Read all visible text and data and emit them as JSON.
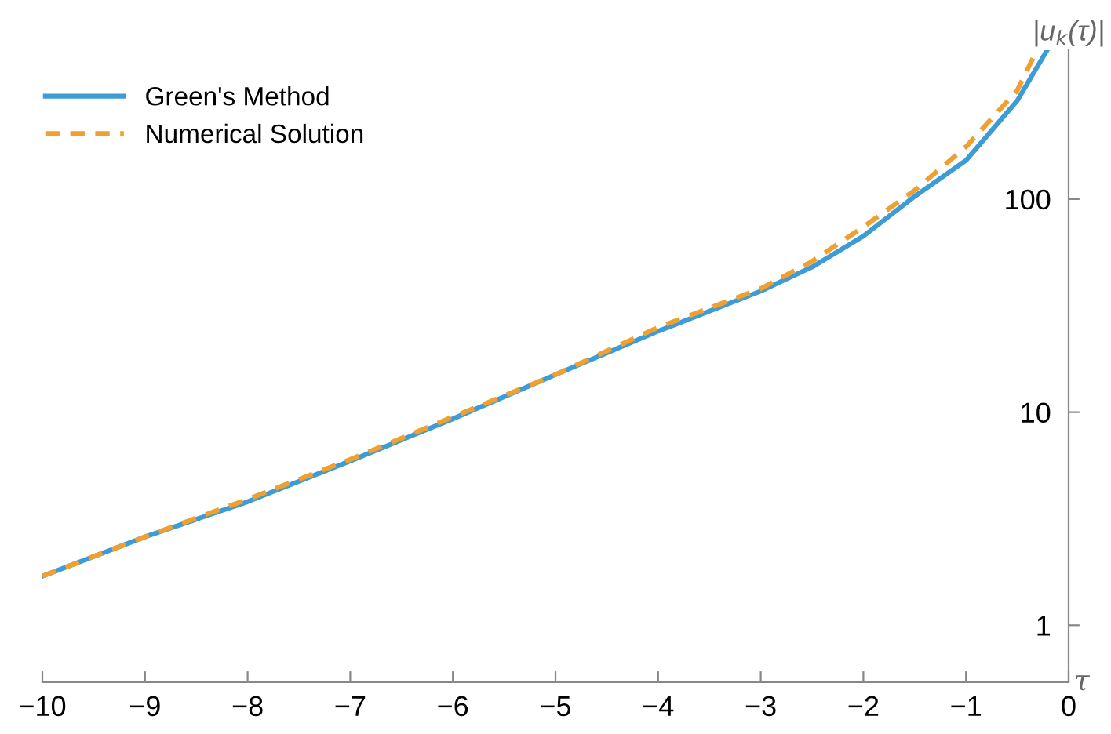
{
  "chart_data": {
    "type": "line",
    "xlabel": "τ",
    "ylabel": "|u$_{k}$(τ)|",
    "log": "y",
    "xlim": [
      -10,
      0
    ],
    "xticks": [
      {
        "value": -10,
        "label": "−10"
      },
      {
        "value": -9,
        "label": "−9"
      },
      {
        "value": -8,
        "label": "−8"
      },
      {
        "value": -7,
        "label": "−7"
      },
      {
        "value": -6,
        "label": "−6"
      },
      {
        "value": -5,
        "label": "−5"
      },
      {
        "value": -4,
        "label": "−4"
      },
      {
        "value": -3,
        "label": "−3"
      },
      {
        "value": -2,
        "label": "−2"
      },
      {
        "value": -1,
        "label": "−1"
      },
      0
    ],
    "ylim": [
      0.54,
      500
    ],
    "yticks": [
      1,
      10,
      100
    ],
    "grid": false,
    "legend": "top left",
    "marker": "none",
    "series": [
      {
        "name": "Green's Method",
        "color": "#3d9bd6",
        "line_style": "solid",
        "x": [
          -10,
          -9,
          -8,
          -7,
          -6,
          -5,
          -4,
          -3,
          -2.5,
          -2,
          -1.5,
          -1,
          -0.5,
          -0.21
        ],
        "values": [
          1.7,
          2.6,
          3.8,
          5.9,
          9.3,
          15,
          24,
          37,
          48,
          67,
          103,
          152,
          290,
          500
        ]
      },
      {
        "name": "Numerical Solution",
        "color": "#f0a030",
        "line_style": "dashed",
        "x": [
          -10,
          -9,
          -8,
          -7,
          -6,
          -5,
          -4,
          -3,
          -2.5,
          -2,
          -1.5,
          -1,
          -0.5,
          -0.31
        ],
        "values": [
          1.7,
          2.6,
          3.9,
          6,
          9.5,
          15,
          25,
          38,
          51,
          74,
          110,
          176,
          324,
          500
        ]
      }
    ]
  }
}
